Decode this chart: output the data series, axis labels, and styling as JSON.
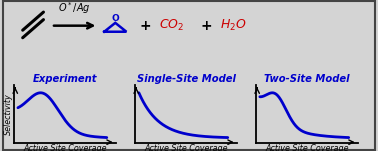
{
  "background_color": "#d4d4d4",
  "border_color": "#444444",
  "byproduct_color": "#cc0000",
  "reaction_color": "#0000cc",
  "curve_color": "#0000cc",
  "curve_linewidth": 2.0,
  "label_color": "#0000cc",
  "title_fontsize": 7.2,
  "axis_label_fontsize": 5.8,
  "selectivity_label": "Selectivity",
  "xlabel_label": "Active Site Coverage",
  "figsize": [
    3.78,
    1.51
  ],
  "dpi": 100,
  "plots": [
    {
      "title": "Experiment",
      "curve_type": "experiment"
    },
    {
      "title": "Single-Site Model",
      "curve_type": "single_site"
    },
    {
      "title": "Two-Site Model",
      "curve_type": "two_site"
    }
  ]
}
